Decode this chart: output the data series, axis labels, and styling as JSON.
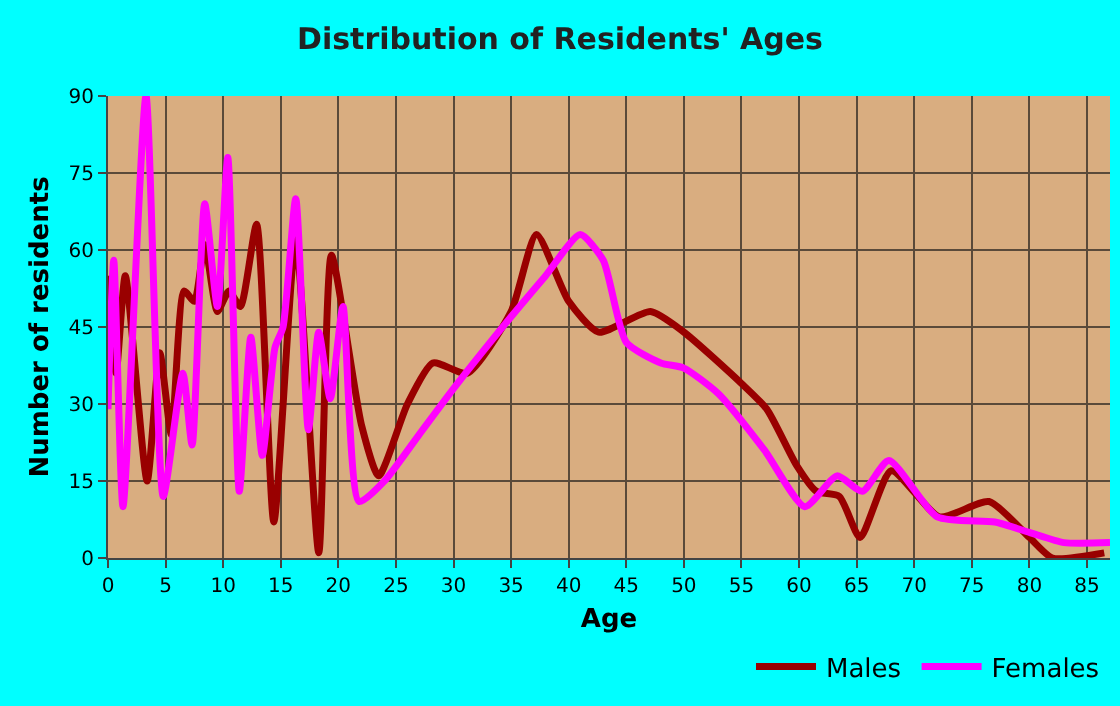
{
  "chart_data": {
    "type": "line",
    "title": "Distribution of Residents' Ages",
    "xlabel": "Age",
    "ylabel": "Number of residents",
    "xlim": [
      0,
      87
    ],
    "xticks": [
      0,
      5,
      10,
      15,
      20,
      25,
      30,
      35,
      40,
      45,
      50,
      55,
      60,
      65,
      70,
      75,
      80,
      85
    ],
    "ylim": [
      0,
      90
    ],
    "yticks": [
      0,
      15,
      30,
      45,
      60,
      75,
      90
    ],
    "grid": true,
    "legend": "bottom right",
    "series": [
      {
        "name": "Males",
        "color": "#990000",
        "x": [
          0,
          0.7,
          1.5,
          3.4,
          4.5,
          5.5,
          6.6,
          7.5,
          8.4,
          9.5,
          10.5,
          11.5,
          12.9,
          14.4,
          16.3,
          18.3,
          19.4,
          22,
          23.5,
          26,
          28.2,
          31.2,
          35,
          37.2,
          40,
          42.6,
          47.1,
          50,
          55,
          57.2,
          59.8,
          61.5,
          63.5,
          65.3,
          68,
          72.2,
          76.5,
          80,
          82,
          86.5
        ],
        "values": [
          55,
          36,
          55,
          15,
          40,
          24,
          52,
          50,
          61,
          48,
          52,
          49,
          65,
          7,
          62,
          1,
          59,
          26,
          16,
          30,
          38,
          36,
          48,
          63,
          50,
          44,
          48,
          44,
          34,
          29,
          18,
          13,
          12,
          4,
          17,
          8,
          11,
          4,
          0,
          1
        ]
      },
      {
        "name": "Females",
        "color": "#ff00ff",
        "x": [
          0,
          0.5,
          1.3,
          3.3,
          4.8,
          6.5,
          7.3,
          8.4,
          9.5,
          10.4,
          11.4,
          12.4,
          13.4,
          14.5,
          15.2,
          16.3,
          17.4,
          18.3,
          19.3,
          20.4,
          21.8,
          24,
          27,
          30,
          35,
          38,
          41,
          43,
          45,
          48,
          50,
          53,
          57,
          60.5,
          63.3,
          65.5,
          67.8,
          72,
          77,
          80,
          83,
          87
        ],
        "values": [
          29,
          58,
          10,
          90,
          12,
          36,
          22,
          69,
          49,
          78,
          13,
          43,
          20,
          41,
          45,
          70,
          25,
          44,
          31,
          49,
          11,
          15,
          24,
          33,
          47,
          55,
          63,
          58,
          42,
          38,
          37,
          32,
          21,
          10,
          16,
          13,
          19,
          8,
          7,
          5,
          3,
          3
        ]
      }
    ]
  }
}
